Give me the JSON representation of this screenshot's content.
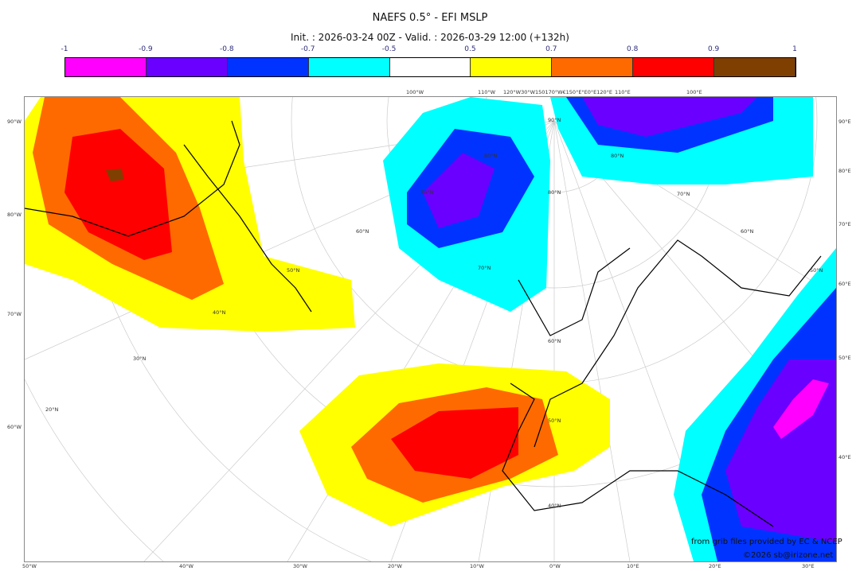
{
  "title": "NAEFS 0.5° - EFI MSLP",
  "subtitle": "Init. : 2026-03-24 00Z - Valid. : 2026-03-29 12:00 (+132h)",
  "colorbar": {
    "ticks": [
      "-1",
      "-0.9",
      "-0.8",
      "-0.7",
      "-0.5",
      "0.5",
      "0.7",
      "0.8",
      "0.9",
      "1"
    ],
    "colors": [
      "#ff00ff",
      "#6a00ff",
      "#0033ff",
      "#00ffff",
      "#ffffff",
      "#ffff00",
      "#ff6a00",
      "#ff0000",
      "#7f3f00"
    ]
  },
  "axes": {
    "bottom": [
      "50°W",
      "40°W",
      "30°W",
      "20°W",
      "10°W",
      "0°W",
      "10°E",
      "20°E",
      "30°E"
    ],
    "left": [
      "90°W",
      "80°W",
      "70°W",
      "60°W"
    ],
    "right": [
      "90°E",
      "80°E",
      "70°E",
      "60°E",
      "50°E",
      "40°E"
    ],
    "top": [
      "100°W",
      "110°W",
      "120°W30°W150170°W€150°E°E0°E120°E",
      "110°E",
      "100°E"
    ],
    "lat": [
      "90°N",
      "80°N",
      "80°N",
      "70°N",
      "70°N",
      "60°N",
      "60°N",
      "60°N",
      "50°N",
      "50°N",
      "50°N",
      "40°N",
      "40°N",
      "30°N",
      "20°N",
      "70°N",
      "80°N"
    ]
  },
  "credits": {
    "source": "from grib files provided by EC & NCEP",
    "copyright": "©2026 sb@irizone.net"
  }
}
